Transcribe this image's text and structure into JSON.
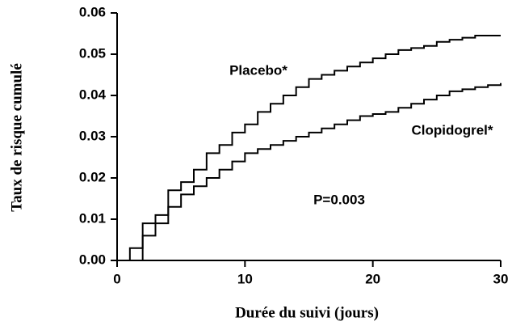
{
  "chart_data": {
    "type": "step",
    "x_label": "Durée du suivi (jours)",
    "y_label": "Taux de risque cumulé",
    "annotation": "P=0.003",
    "x": [
      0,
      1,
      2,
      3,
      4,
      5,
      6,
      7,
      8,
      9,
      10,
      11,
      12,
      13,
      14,
      15,
      16,
      17,
      18,
      19,
      20,
      21,
      22,
      23,
      24,
      25,
      26,
      27,
      28,
      29,
      30
    ],
    "series": [
      {
        "name": "Placebo*",
        "color": "#000000",
        "values": [
          0,
          0.003,
          0.009,
          0.011,
          0.017,
          0.019,
          0.022,
          0.026,
          0.028,
          0.031,
          0.033,
          0.036,
          0.038,
          0.04,
          0.042,
          0.044,
          0.045,
          0.046,
          0.047,
          0.048,
          0.049,
          0.05,
          0.051,
          0.0515,
          0.052,
          0.053,
          0.0535,
          0.054,
          0.0545,
          0.0545,
          0.0545
        ]
      },
      {
        "name": "Clopidogrel*",
        "color": "#000000",
        "values": [
          0,
          0,
          0.006,
          0.009,
          0.013,
          0.016,
          0.018,
          0.02,
          0.022,
          0.024,
          0.026,
          0.027,
          0.028,
          0.029,
          0.03,
          0.031,
          0.032,
          0.033,
          0.034,
          0.035,
          0.0355,
          0.036,
          0.037,
          0.038,
          0.039,
          0.04,
          0.041,
          0.0415,
          0.042,
          0.0425,
          0.043
        ]
      }
    ],
    "xlim": [
      0,
      30
    ],
    "xticks": [
      0,
      10,
      20,
      30
    ],
    "ylim": [
      0,
      0.06
    ],
    "yticks": [
      {
        "value": 0,
        "label": "0.00"
      },
      0.01,
      0.02,
      0.03,
      0.04,
      0.05,
      0.06
    ]
  }
}
